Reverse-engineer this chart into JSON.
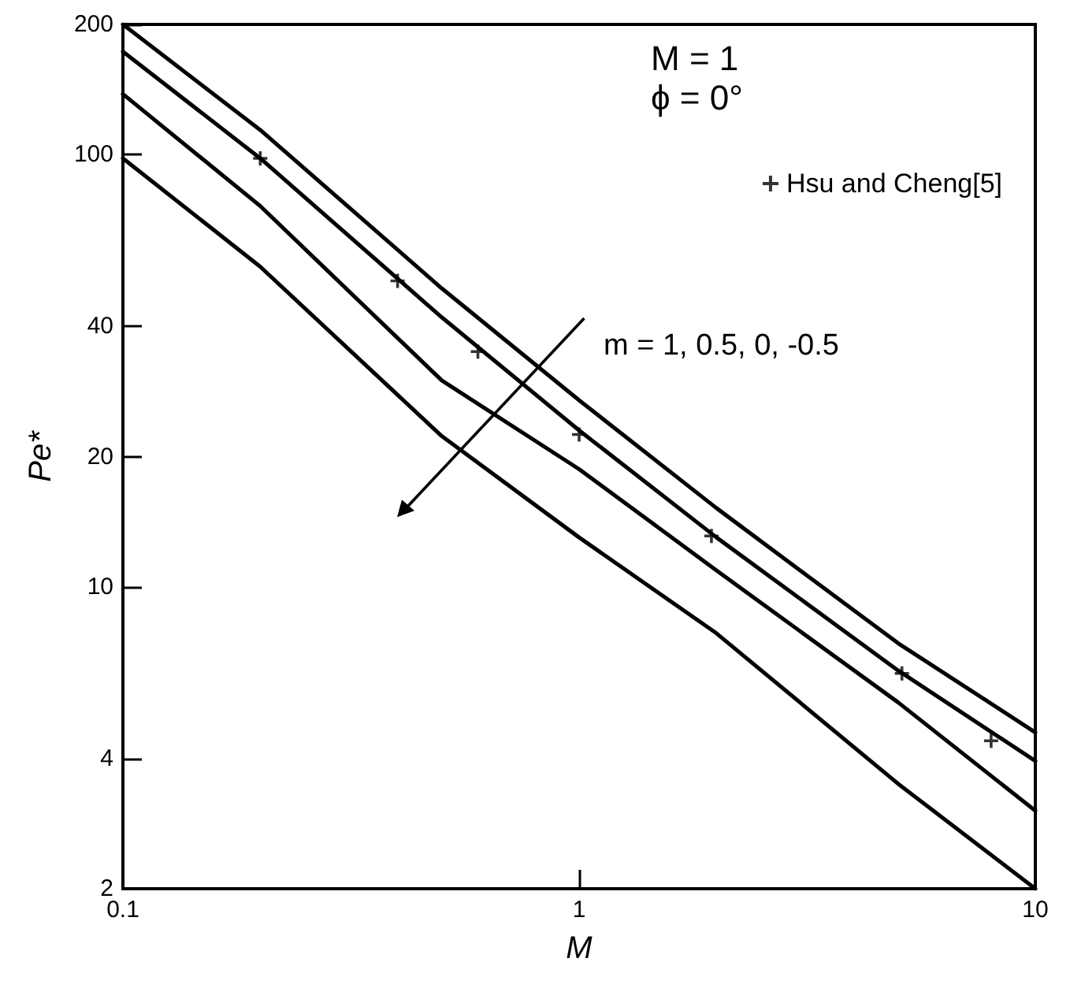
{
  "chart_data": {
    "type": "line",
    "xlabel": "M",
    "ylabel": "Pe*",
    "log": "xy",
    "xlim": [
      0.1,
      10
    ],
    "ylim": [
      2,
      200
    ],
    "xticks": [
      0.1,
      1,
      10
    ],
    "yticks": [
      2,
      4,
      10,
      20,
      40,
      100,
      200
    ],
    "grid": false,
    "legend": "top right",
    "marker": "none",
    "line_style": "solid",
    "annotations": [
      "M = 1",
      "ϕ = 0°",
      "m = 1, 0.5, 0, -0.5"
    ],
    "x": [
      0.1,
      0.2,
      0.5,
      1,
      2,
      5,
      10
    ],
    "series": [
      {
        "color": "#000000",
        "values": [
          200,
          114,
          49,
          27,
          15.2,
          7.4,
          4.6
        ]
      },
      {
        "color": "#000000",
        "values": [
          173,
          98,
          42,
          23,
          13,
          6.4,
          3.95
        ]
      },
      {
        "color": "#000000",
        "values": [
          138,
          76,
          30,
          18.7,
          10.9,
          5.4,
          3.03
        ]
      },
      {
        "color": "#000000",
        "values": [
          98,
          55,
          22.3,
          13,
          7.8,
          3.5,
          2.0
        ]
      },
      {
        "type": "scatter",
        "name": "Hsu and Cheng[5]",
        "color": "#000000",
        "marker": "cross",
        "x": [
          0.2,
          0.4,
          0.6,
          1.0,
          1.95,
          5.1,
          8.0
        ],
        "values": [
          98,
          51,
          35,
          22.5,
          13.1,
          6.3,
          4.4
        ]
      }
    ]
  }
}
